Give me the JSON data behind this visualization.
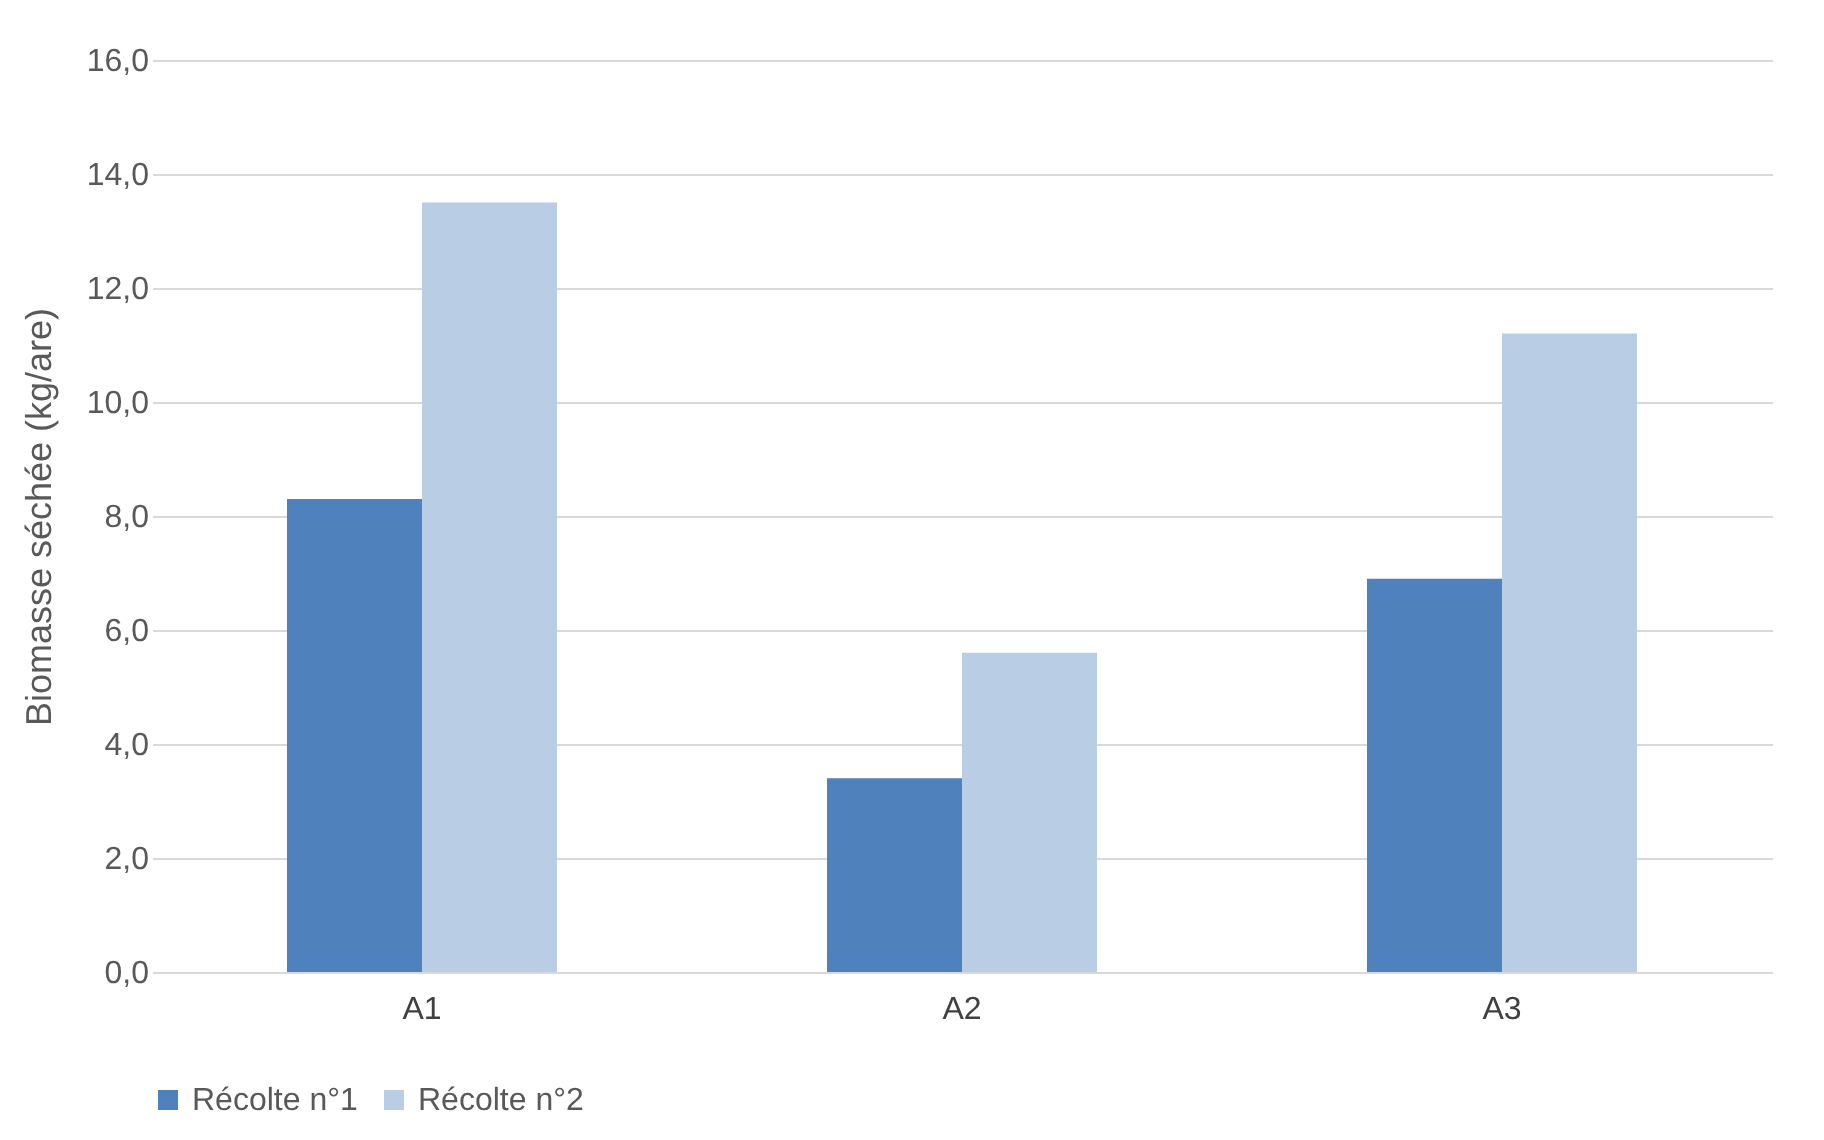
{
  "chart_data": {
    "type": "bar",
    "ylabel": "Biomasse séchée (kg/are)",
    "categories": [
      "A1",
      "A2",
      "A3"
    ],
    "series": [
      {
        "name": "Récolte n°1",
        "color": "#4f81bd",
        "values": [
          8.3,
          3.4,
          6.9
        ]
      },
      {
        "name": "Récolte n°2",
        "color": "#b9cde5",
        "values": [
          13.5,
          5.6,
          11.2
        ]
      }
    ],
    "ylim": [
      0,
      16
    ],
    "yticks": [
      {
        "value": 0,
        "label": "0,0"
      },
      {
        "value": 2,
        "label": "2,0"
      },
      {
        "value": 4,
        "label": "4,0"
      },
      {
        "value": 6,
        "label": "6,0"
      },
      {
        "value": 8,
        "label": "8,0"
      },
      {
        "value": 10,
        "label": "10,0"
      },
      {
        "value": 12,
        "label": "12,0"
      },
      {
        "value": 14,
        "label": "14,0"
      },
      {
        "value": 16,
        "label": "16,0"
      }
    ],
    "grid": "y",
    "legend": "bottom"
  }
}
